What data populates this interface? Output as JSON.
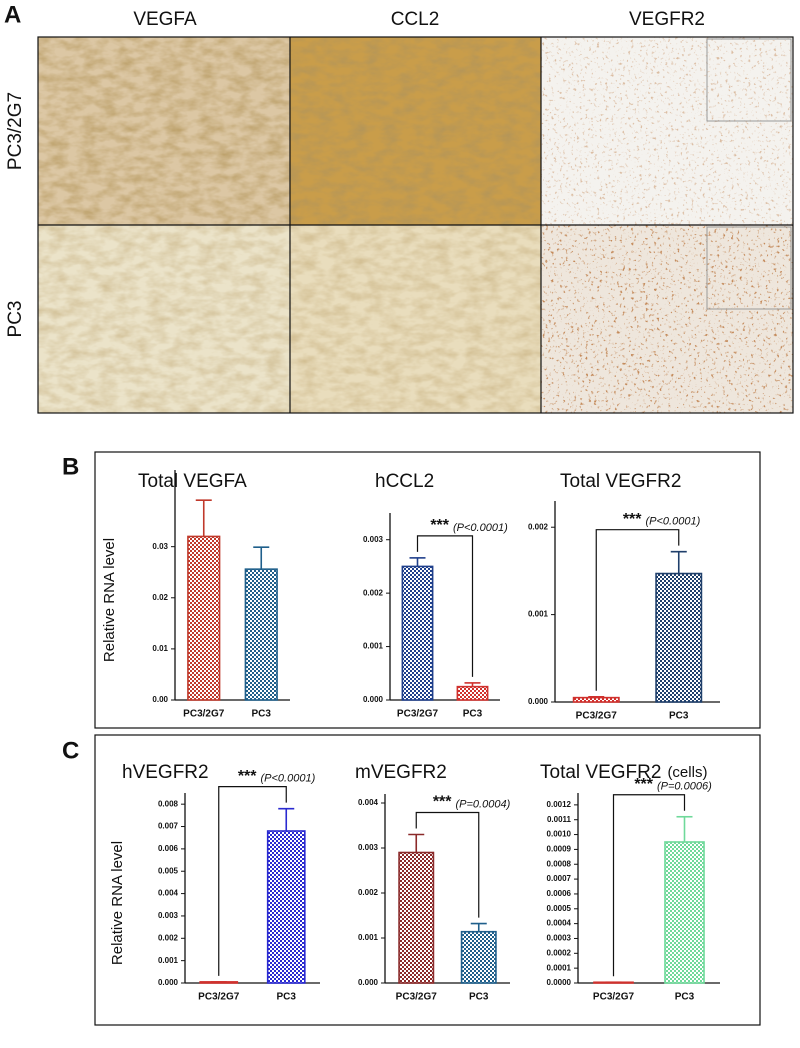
{
  "panel_a": {
    "label": "A",
    "columns": [
      "VEGFA",
      "CCL2",
      "VEGFR2"
    ],
    "rows": [
      "PC3/2G7",
      "PC3"
    ]
  },
  "panel_b": {
    "label": "B"
  },
  "panel_c": {
    "label": "C"
  },
  "chart_data": [
    {
      "type": "bar",
      "title": "Total VEGFA",
      "ylabel": "Relative RNA level",
      "categories": [
        "PC3/2G7",
        "PC3"
      ],
      "values": [
        0.032,
        0.0256
      ],
      "errors": [
        0.0071,
        0.0043
      ],
      "colors": [
        "#c0392b",
        "#1f5f8b"
      ],
      "ylim": [
        0,
        0.045
      ],
      "yticks": [
        {
          "value": 0,
          "label": "0.00"
        },
        0.01,
        0.02,
        0.03
      ]
    },
    {
      "type": "bar",
      "title": "hCCL2",
      "categories": [
        "PC3/2G7",
        "PC3"
      ],
      "values": [
        0.0025,
        0.00025
      ],
      "errors": [
        0.00016,
        7e-05
      ],
      "colors": [
        "#1f3f8b",
        "#d0312d"
      ],
      "ylim": [
        0,
        0.0035
      ],
      "yticks": [
        {
          "value": 0,
          "label": "0.000"
        },
        0.001,
        0.002,
        0.003
      ],
      "annotation_stars": "***",
      "annotation_p": "(P<0.0001)"
    },
    {
      "type": "bar",
      "title": "Total VEGFR2",
      "categories": [
        "PC3/2G7",
        "PC3"
      ],
      "values": [
        5e-05,
        0.00147
      ],
      "errors": [
        1e-05,
        0.00025
      ],
      "colors": [
        "#d0312d",
        "#1f3f6b"
      ],
      "ylim": [
        0,
        0.0023
      ],
      "yticks": [
        {
          "value": 0,
          "label": "0.000"
        },
        0.001,
        0.002
      ],
      "annotation_stars": "***",
      "annotation_p": "(P<0.0001)"
    },
    {
      "type": "bar",
      "title": "hVEGFR2",
      "ylabel": "Relative RNA level",
      "categories": [
        "PC3/2G7",
        "PC3"
      ],
      "values": [
        5e-05,
        0.0068
      ],
      "errors": [
        0,
        0.001
      ],
      "colors": [
        "#d0312d",
        "#2a2ad0"
      ],
      "ylim": [
        0,
        0.0085
      ],
      "yticks": [
        {
          "value": 0,
          "label": "0.000"
        },
        0.001,
        0.002,
        0.003,
        0.004,
        0.005,
        0.006,
        0.007,
        0.008
      ],
      "annotation_stars": "***",
      "annotation_p": "(P<0.0001)"
    },
    {
      "type": "bar",
      "title": "mVEGFR2",
      "categories": [
        "PC3/2G7",
        "PC3"
      ],
      "values": [
        0.0029,
        0.00114
      ],
      "errors": [
        0.0004,
        0.00018
      ],
      "colors": [
        "#8b2a2a",
        "#1f5f8b"
      ],
      "ylim": [
        0,
        0.0042
      ],
      "yticks": [
        {
          "value": 0,
          "label": "0.000"
        },
        0.001,
        0.002,
        0.003,
        0.004
      ],
      "annotation_stars": "***",
      "annotation_p": "(P=0.0004)"
    },
    {
      "type": "bar",
      "title": "Total VEGFR2",
      "subtitle": "(cells)",
      "categories": [
        "PC3/2G7",
        "PC3"
      ],
      "values": [
        5e-06,
        0.00095
      ],
      "errors": [
        0,
        0.00017
      ],
      "colors": [
        "#d0312d",
        "#6fd99a"
      ],
      "ylim": [
        0,
        0.00128
      ],
      "yticks": [
        {
          "value": 0,
          "label": "0.0000"
        },
        0.0001,
        0.0002,
        0.0003,
        0.0004,
        0.0005,
        0.0006,
        0.0007,
        0.0008,
        0.0009,
        {
          "value": 0.001,
          "label": "0.0010"
        },
        0.0011,
        0.0012
      ],
      "annotation_stars": "***",
      "annotation_p": "(P=0.0006)"
    }
  ]
}
